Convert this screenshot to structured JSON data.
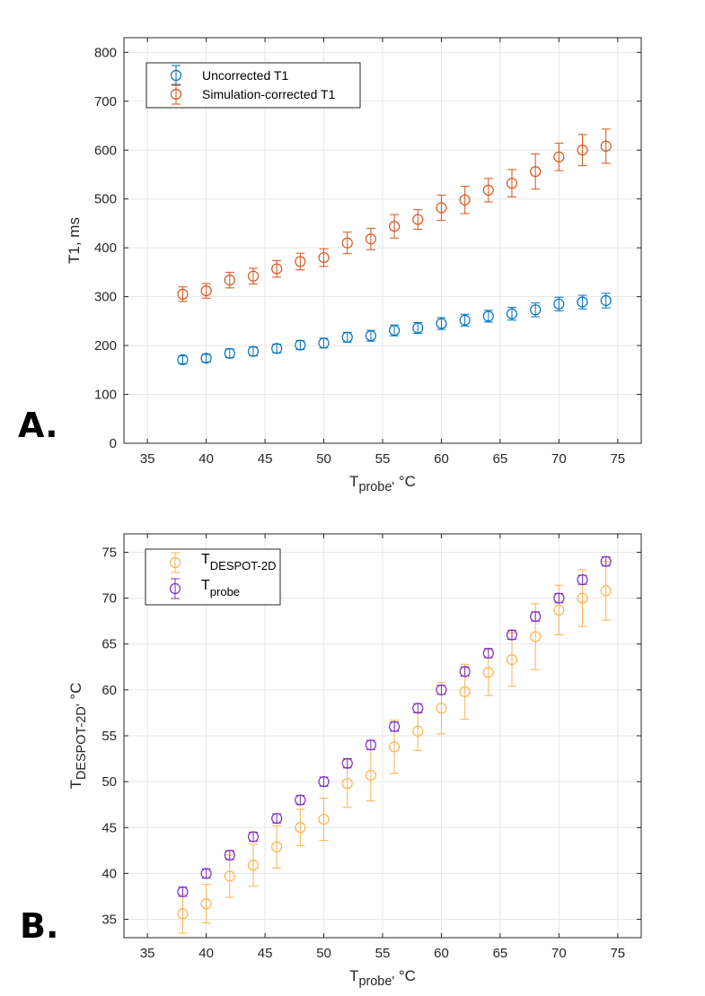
{
  "panel_labels": {
    "a": "A.",
    "b": "B."
  },
  "colors": {
    "blue": "#0072BD",
    "orange": "#D95319",
    "yellow": "#FFB14E",
    "purple": "#7E2FBF",
    "grid": "#e6e6e6",
    "axis": "#262626"
  },
  "chart_data": [
    {
      "type": "scatter",
      "id": "A",
      "title": "",
      "xlabel_main": "T",
      "xlabel_sub": "probe'",
      "xlabel_unit": " °C",
      "ylabel": "T1, ms",
      "xlim": [
        33,
        77
      ],
      "ylim": [
        0,
        830
      ],
      "xticks": [
        35,
        40,
        45,
        50,
        55,
        60,
        65,
        70,
        75
      ],
      "yticks": [
        0,
        100,
        200,
        300,
        400,
        500,
        600,
        700,
        800
      ],
      "grid": true,
      "legend_position": "top-left",
      "x": [
        38,
        40,
        42,
        44,
        46,
        48,
        50,
        52,
        54,
        56,
        58,
        60,
        62,
        64,
        66,
        68,
        70,
        72,
        74
      ],
      "series": [
        {
          "name": "Uncorrected T1",
          "color": "#0072BD",
          "values": [
            171,
            174,
            184,
            188,
            194,
            201,
            205,
            217,
            220,
            231,
            236,
            245,
            252,
            260,
            265,
            273,
            285,
            289,
            292
          ],
          "errors": [
            8,
            8,
            9,
            9,
            9,
            9,
            10,
            10,
            11,
            11,
            11,
            12,
            12,
            12,
            13,
            14,
            14,
            14,
            15
          ]
        },
        {
          "name": "Simulation-corrected T1",
          "color": "#D95319",
          "values": [
            305,
            312,
            334,
            342,
            357,
            372,
            380,
            410,
            418,
            444,
            458,
            482,
            498,
            518,
            532,
            556,
            586,
            600,
            608
          ],
          "errors": [
            15,
            15,
            16,
            16,
            17,
            17,
            18,
            22,
            22,
            24,
            20,
            26,
            28,
            24,
            28,
            36,
            28,
            32,
            35
          ]
        }
      ]
    },
    {
      "type": "scatter",
      "id": "B",
      "title": "",
      "xlabel_main": "T",
      "xlabel_sub": "probe'",
      "xlabel_unit": " °C",
      "ylabel_main": "T",
      "ylabel_sub": "DESPOT-2D'",
      "ylabel_unit": " °C",
      "xlim": [
        33,
        77
      ],
      "ylim": [
        33,
        77
      ],
      "xticks": [
        35,
        40,
        45,
        50,
        55,
        60,
        65,
        70,
        75
      ],
      "yticks": [
        35,
        40,
        45,
        50,
        55,
        60,
        65,
        70,
        75
      ],
      "grid": true,
      "legend_position": "top-left",
      "x": [
        38,
        40,
        42,
        44,
        46,
        48,
        50,
        52,
        54,
        56,
        58,
        60,
        62,
        64,
        66,
        68,
        70,
        72,
        74
      ],
      "series": [
        {
          "name_main": "T",
          "name_sub": "DESPOT-2D",
          "color": "#FFB14E",
          "values": [
            35.6,
            36.7,
            39.7,
            40.9,
            42.9,
            45.0,
            45.9,
            49.8,
            50.7,
            53.8,
            55.5,
            58.0,
            59.8,
            61.9,
            63.3,
            65.8,
            68.7,
            70.0,
            70.8
          ],
          "errors": [
            2.1,
            2.1,
            2.3,
            2.3,
            2.3,
            2.0,
            2.3,
            2.6,
            2.8,
            2.9,
            2.1,
            2.8,
            3.0,
            2.5,
            2.9,
            3.6,
            2.7,
            3.1,
            3.2
          ]
        },
        {
          "name_main": "T",
          "name_sub": "probe",
          "color": "#7E2FBF",
          "values": [
            38,
            40,
            42,
            44,
            46,
            48,
            50,
            52,
            54,
            56,
            58,
            60,
            62,
            64,
            66,
            68,
            70,
            72,
            74
          ],
          "errors": [
            0.5,
            0.5,
            0.5,
            0.5,
            0.5,
            0.5,
            0.5,
            0.5,
            0.5,
            0.5,
            0.5,
            0.5,
            0.5,
            0.5,
            0.5,
            0.5,
            0.5,
            0.5,
            0.5
          ]
        }
      ]
    }
  ]
}
